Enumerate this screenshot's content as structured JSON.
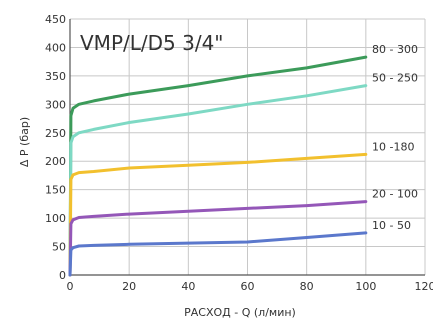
{
  "chart_data": {
    "type": "line",
    "title": "VMP/L/D5 3/4\"",
    "xlabel": "РАСХОД - Q (л/мин)",
    "ylabel": "Δ P (бар)",
    "xlim": [
      0,
      120
    ],
    "ylim": [
      0,
      450
    ],
    "x_ticks": [
      0,
      20,
      40,
      60,
      80,
      100,
      120
    ],
    "y_ticks": [
      0,
      50,
      100,
      150,
      200,
      250,
      300,
      350,
      400,
      450
    ],
    "grid": true,
    "legend": "inline labels at right end of each line",
    "series": [
      {
        "name": "80 - 300",
        "color": "#3c9b5a",
        "x": [
          0,
          0.3,
          1,
          3,
          8,
          20,
          40,
          60,
          80,
          100
        ],
        "y": [
          0,
          280,
          293,
          300,
          306,
          318,
          333,
          350,
          364,
          383
        ]
      },
      {
        "name": "50 - 250",
        "color": "#7ed9c4",
        "x": [
          0,
          0.3,
          1,
          3,
          8,
          20,
          40,
          60,
          80,
          100
        ],
        "y": [
          0,
          232,
          243,
          250,
          256,
          268,
          283,
          300,
          315,
          333
        ]
      },
      {
        "name": "10 -180",
        "color": "#f2c02e",
        "x": [
          0,
          0.3,
          1,
          3,
          8,
          20,
          40,
          60,
          80,
          100
        ],
        "y": [
          0,
          168,
          176,
          180,
          182,
          188,
          193,
          198,
          205,
          212
        ]
      },
      {
        "name": "20 - 100",
        "color": "#9457b8",
        "x": [
          0,
          0.3,
          1,
          3,
          8,
          20,
          40,
          60,
          80,
          100
        ],
        "y": [
          0,
          90,
          97,
          101,
          103,
          107,
          112,
          117,
          122,
          129
        ]
      },
      {
        "name": "10 - 50",
        "color": "#5b78cc",
        "x": [
          0,
          0.3,
          1,
          3,
          8,
          20,
          40,
          60,
          80,
          100
        ],
        "y": [
          0,
          44,
          48,
          51,
          52,
          54,
          56,
          58,
          66,
          74
        ]
      }
    ]
  }
}
